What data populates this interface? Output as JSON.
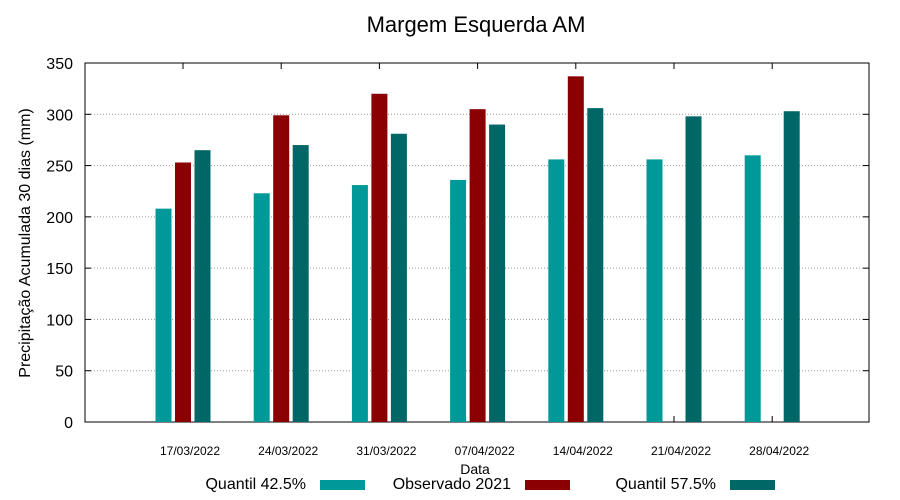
{
  "chart_data": {
    "type": "bar",
    "title": "Margem Esquerda AM",
    "xlabel": "Data",
    "ylabel": "Precipitação Acumulada 30 dias (mm)",
    "ylim": [
      0,
      350
    ],
    "yticks": [
      0,
      50,
      100,
      150,
      200,
      250,
      300,
      350
    ],
    "grid": "horizontal dotted",
    "legend_position": "bottom",
    "categories": [
      "17/03/2022",
      "24/03/2022",
      "31/03/2022",
      "07/04/2022",
      "14/04/2022",
      "21/04/2022",
      "28/04/2022"
    ],
    "series": [
      {
        "name": "Quantil 42.5%",
        "color": "#009999",
        "values": [
          208,
          223,
          231,
          236,
          256,
          256,
          260
        ]
      },
      {
        "name": "Observado 2021",
        "color": "#8b0000",
        "values": [
          253,
          299,
          320,
          305,
          337,
          null,
          null
        ]
      },
      {
        "name": "Quantil 57.5%",
        "color": "#006666",
        "values": [
          265,
          270,
          281,
          290,
          306,
          298,
          303
        ]
      }
    ]
  }
}
